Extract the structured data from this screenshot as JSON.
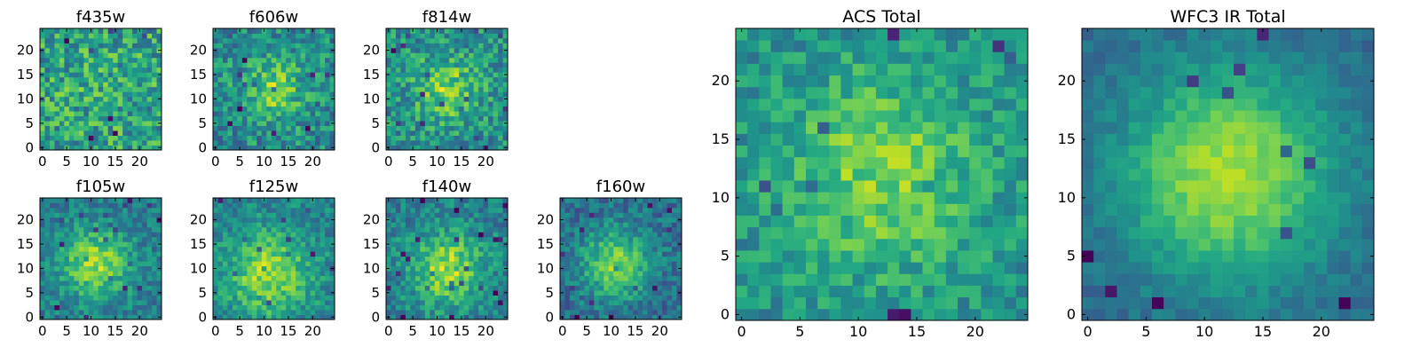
{
  "figure": {
    "colormap": "viridis",
    "background": "#ffffff"
  },
  "chart_data": [
    {
      "type": "heatmap",
      "title": "f435w",
      "grid_size": 25,
      "center": [
        12,
        12
      ],
      "sigma": 7,
      "strength": 0.05,
      "base": 0.56,
      "noise": 0.5,
      "seed": 11,
      "xticks": [
        0,
        5,
        10,
        15,
        20
      ],
      "yticks": [
        0,
        5,
        10,
        15,
        20
      ],
      "xlim": [
        0,
        25
      ],
      "ylim": [
        0,
        25
      ]
    },
    {
      "type": "heatmap",
      "title": "f606w",
      "grid_size": 25,
      "center": [
        12,
        12
      ],
      "sigma": 4.5,
      "strength": 0.3,
      "base": 0.48,
      "noise": 0.42,
      "seed": 23,
      "xticks": [
        0,
        5,
        10,
        15,
        20
      ],
      "yticks": [
        0,
        5,
        10,
        15,
        20
      ],
      "xlim": [
        0,
        25
      ],
      "ylim": [
        0,
        25
      ]
    },
    {
      "type": "heatmap",
      "title": "f814w",
      "grid_size": 25,
      "center": [
        12,
        12
      ],
      "sigma": 4.5,
      "strength": 0.3,
      "base": 0.5,
      "noise": 0.42,
      "seed": 37,
      "xticks": [
        0,
        5,
        10,
        15,
        20
      ],
      "yticks": [
        0,
        5,
        10,
        15,
        20
      ],
      "xlim": [
        0,
        25
      ],
      "ylim": [
        0,
        25
      ]
    },
    {
      "type": "heatmap",
      "title": "f105w",
      "grid_size": 25,
      "center": [
        11,
        11
      ],
      "sigma": 5,
      "strength": 0.42,
      "base": 0.42,
      "noise": 0.3,
      "seed": 41,
      "xticks": [
        0,
        5,
        10,
        15,
        20
      ],
      "yticks": [
        0,
        5,
        10,
        15,
        20
      ],
      "xlim": [
        0,
        25
      ],
      "ylim": [
        0,
        25
      ]
    },
    {
      "type": "heatmap",
      "title": "f125w",
      "grid_size": 25,
      "center": [
        11,
        9
      ],
      "sigma": 6,
      "strength": 0.4,
      "base": 0.45,
      "noise": 0.3,
      "seed": 53,
      "xticks": [
        0,
        5,
        10,
        15,
        20
      ],
      "yticks": [
        0,
        5,
        10,
        15,
        20
      ],
      "xlim": [
        0,
        25
      ],
      "ylim": [
        0,
        25
      ]
    },
    {
      "type": "heatmap",
      "title": "f140w",
      "grid_size": 25,
      "center": [
        12,
        10
      ],
      "sigma": 5,
      "strength": 0.42,
      "base": 0.44,
      "noise": 0.32,
      "seed": 67,
      "xticks": [
        0,
        5,
        10,
        15,
        20
      ],
      "yticks": [
        0,
        5,
        10,
        15,
        20
      ],
      "xlim": [
        0,
        25
      ],
      "ylim": [
        0,
        25
      ]
    },
    {
      "type": "heatmap",
      "title": "f160w",
      "grid_size": 25,
      "center": [
        11,
        11
      ],
      "sigma": 5,
      "strength": 0.45,
      "base": 0.36,
      "noise": 0.3,
      "seed": 79,
      "xticks": [
        0,
        5,
        10,
        15,
        20
      ],
      "yticks": [
        0,
        5,
        10,
        15,
        20
      ],
      "xlim": [
        0,
        25
      ],
      "ylim": [
        0,
        25
      ]
    },
    {
      "type": "heatmap",
      "title": "ACS Total",
      "grid_size": 25,
      "center": [
        12,
        12
      ],
      "sigma": 6,
      "strength": 0.3,
      "base": 0.5,
      "noise": 0.3,
      "seed": 97,
      "xticks": [
        0,
        5,
        10,
        15,
        20
      ],
      "yticks": [
        0,
        5,
        10,
        15,
        20
      ],
      "xlim": [
        0,
        25
      ],
      "ylim": [
        0,
        25
      ]
    },
    {
      "type": "heatmap",
      "title": "WFC3 IR Total",
      "grid_size": 25,
      "center": [
        12,
        12
      ],
      "sigma": 6.5,
      "strength": 0.55,
      "base": 0.33,
      "noise": 0.14,
      "seed": 113,
      "xticks": [
        0,
        5,
        10,
        15,
        20
      ],
      "yticks": [
        0,
        5,
        10,
        15,
        20
      ],
      "xlim": [
        0,
        25
      ],
      "ylim": [
        0,
        25
      ]
    }
  ]
}
